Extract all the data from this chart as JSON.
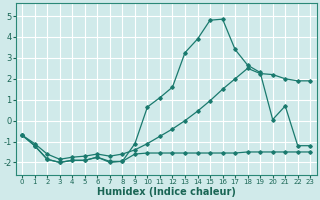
{
  "title": "",
  "xlabel": "Humidex (Indice chaleur)",
  "ylabel": "",
  "background_color": "#d0eaea",
  "grid_color": "#ffffff",
  "line_color": "#1a7a6e",
  "xlim": [
    -0.5,
    23.5
  ],
  "ylim": [
    -2.6,
    5.6
  ],
  "xticks": [
    0,
    1,
    2,
    3,
    4,
    5,
    6,
    7,
    8,
    9,
    10,
    11,
    12,
    13,
    14,
    15,
    16,
    17,
    18,
    19,
    20,
    21,
    22,
    23
  ],
  "yticks": [
    -2,
    -1,
    0,
    1,
    2,
    3,
    4,
    5
  ],
  "series": [
    {
      "x": [
        0,
        1,
        2,
        3,
        4,
        5,
        6,
        7,
        8,
        9,
        10,
        11,
        12,
        13,
        14,
        15,
        16,
        17,
        18,
        19,
        20,
        21,
        22,
        23
      ],
      "y": [
        -0.7,
        -1.2,
        -1.85,
        -2.0,
        -1.9,
        -1.9,
        -1.75,
        -1.95,
        -1.95,
        -1.6,
        -1.55,
        -1.55,
        -1.55,
        -1.55,
        -1.55,
        -1.55,
        -1.55,
        -1.55,
        -1.5,
        -1.5,
        -1.5,
        -1.5,
        -1.5,
        -1.5
      ]
    },
    {
      "x": [
        0,
        1,
        2,
        3,
        4,
        5,
        6,
        7,
        8,
        9,
        10,
        11,
        12,
        13,
        14,
        15,
        16,
        17,
        18,
        19,
        20,
        21,
        22,
        23
      ],
      "y": [
        -0.7,
        -1.2,
        -1.85,
        -2.0,
        -1.9,
        -1.9,
        -1.75,
        -2.0,
        -1.95,
        -1.1,
        0.65,
        1.1,
        1.6,
        3.25,
        3.9,
        4.8,
        4.85,
        3.4,
        2.65,
        2.3,
        0.05,
        0.7,
        -1.2,
        -1.2
      ]
    },
    {
      "x": [
        0,
        1,
        2,
        3,
        4,
        5,
        6,
        7,
        8,
        9,
        10,
        11,
        12,
        13,
        14,
        15,
        16,
        17,
        18,
        19,
        20,
        21,
        22,
        23
      ],
      "y": [
        -0.7,
        -1.1,
        -1.6,
        -1.85,
        -1.75,
        -1.7,
        -1.6,
        -1.7,
        -1.6,
        -1.4,
        -1.1,
        -0.75,
        -0.4,
        0.0,
        0.45,
        0.95,
        1.5,
        2.0,
        2.5,
        2.25,
        2.2,
        2.0,
        1.9,
        1.9
      ]
    }
  ]
}
